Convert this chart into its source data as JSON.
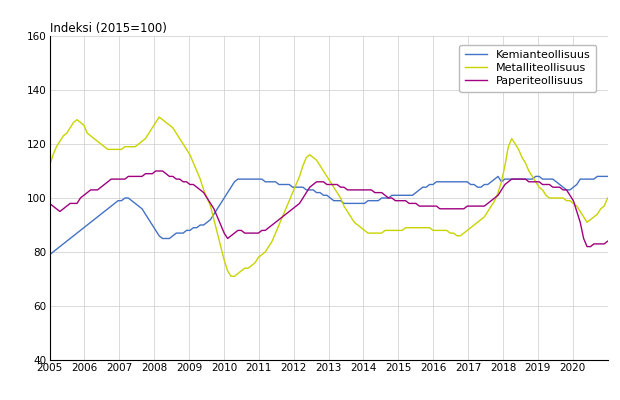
{
  "title": "Indeksi (2015=100)",
  "ylim": [
    40,
    160
  ],
  "yticks": [
    40,
    60,
    80,
    100,
    120,
    140,
    160
  ],
  "xlim": [
    2005.0,
    2021.0
  ],
  "xticks": [
    2005,
    2006,
    2007,
    2008,
    2009,
    2010,
    2011,
    2012,
    2013,
    2014,
    2015,
    2016,
    2017,
    2018,
    2019,
    2020
  ],
  "colors": {
    "Kemianteollisuus": "#4472c4",
    "Metalliteollisuus": "#c8d400",
    "Paperiteollisuus": "#a0007f"
  },
  "Kemianteollisuus": [
    79,
    80,
    81,
    82,
    83,
    84,
    85,
    86,
    87,
    88,
    89,
    90,
    91,
    92,
    93,
    94,
    95,
    96,
    97,
    98,
    99,
    99,
    100,
    100,
    99,
    98,
    97,
    96,
    94,
    92,
    90,
    88,
    86,
    85,
    85,
    85,
    86,
    87,
    87,
    87,
    88,
    88,
    89,
    89,
    90,
    90,
    91,
    92,
    94,
    96,
    98,
    100,
    102,
    104,
    106,
    107,
    107,
    107,
    107,
    107,
    107,
    107,
    107,
    106,
    106,
    106,
    106,
    105,
    105,
    105,
    105,
    104,
    104,
    104,
    104,
    103,
    103,
    103,
    102,
    102,
    101,
    101,
    100,
    99,
    99,
    99,
    98,
    98,
    98,
    98,
    98,
    98,
    98,
    99,
    99,
    99,
    99,
    100,
    100,
    100,
    101,
    101,
    101,
    101,
    101,
    101,
    101,
    102,
    103,
    104,
    104,
    105,
    105,
    106,
    106,
    106,
    106,
    106,
    106,
    106,
    106,
    106,
    106,
    105,
    105,
    104,
    104,
    105,
    105,
    106,
    107,
    108,
    106,
    107,
    107,
    107,
    107,
    107,
    107,
    107,
    107,
    107,
    108,
    108,
    107,
    107,
    107,
    107,
    106,
    105,
    104,
    103,
    103,
    104,
    105,
    107,
    107,
    107,
    107,
    107,
    108,
    108,
    108,
    108
  ],
  "Metalliteollisuus": [
    112,
    116,
    119,
    121,
    123,
    124,
    126,
    128,
    129,
    128,
    127,
    124,
    123,
    122,
    121,
    120,
    119,
    118,
    118,
    118,
    118,
    118,
    119,
    119,
    119,
    119,
    120,
    121,
    122,
    124,
    126,
    128,
    130,
    129,
    128,
    127,
    126,
    124,
    122,
    120,
    118,
    116,
    113,
    110,
    107,
    103,
    100,
    97,
    92,
    87,
    82,
    77,
    73,
    71,
    71,
    72,
    73,
    74,
    74,
    75,
    76,
    78,
    79,
    80,
    82,
    84,
    87,
    90,
    93,
    96,
    99,
    102,
    105,
    108,
    112,
    115,
    116,
    115,
    114,
    112,
    110,
    108,
    106,
    104,
    102,
    100,
    97,
    95,
    93,
    91,
    90,
    89,
    88,
    87,
    87,
    87,
    87,
    87,
    88,
    88,
    88,
    88,
    88,
    88,
    89,
    89,
    89,
    89,
    89,
    89,
    89,
    89,
    88,
    88,
    88,
    88,
    88,
    87,
    87,
    86,
    86,
    87,
    88,
    89,
    90,
    91,
    92,
    93,
    95,
    97,
    99,
    102,
    106,
    112,
    119,
    122,
    120,
    118,
    115,
    113,
    110,
    108,
    106,
    104,
    103,
    101,
    100,
    100,
    100,
    100,
    100,
    99,
    99,
    98,
    97,
    95,
    93,
    91,
    92,
    93,
    94,
    96,
    97,
    100
  ],
  "Paperiteollisuus": [
    98,
    97,
    96,
    95,
    96,
    97,
    98,
    98,
    98,
    100,
    101,
    102,
    103,
    103,
    103,
    104,
    105,
    106,
    107,
    107,
    107,
    107,
    107,
    108,
    108,
    108,
    108,
    108,
    109,
    109,
    109,
    110,
    110,
    110,
    109,
    108,
    108,
    107,
    107,
    106,
    106,
    105,
    105,
    104,
    103,
    102,
    100,
    98,
    96,
    93,
    90,
    87,
    85,
    86,
    87,
    88,
    88,
    87,
    87,
    87,
    87,
    87,
    88,
    88,
    89,
    90,
    91,
    92,
    93,
    94,
    95,
    96,
    97,
    98,
    100,
    102,
    104,
    105,
    106,
    106,
    106,
    105,
    105,
    105,
    105,
    104,
    104,
    103,
    103,
    103,
    103,
    103,
    103,
    103,
    103,
    102,
    102,
    102,
    101,
    100,
    100,
    99,
    99,
    99,
    99,
    98,
    98,
    98,
    97,
    97,
    97,
    97,
    97,
    97,
    96,
    96,
    96,
    96,
    96,
    96,
    96,
    96,
    97,
    97,
    97,
    97,
    97,
    97,
    98,
    99,
    100,
    101,
    103,
    105,
    106,
    107,
    107,
    107,
    107,
    107,
    106,
    106,
    106,
    106,
    105,
    105,
    105,
    104,
    104,
    104,
    103,
    103,
    101,
    99,
    95,
    91,
    85,
    82,
    82,
    83,
    83,
    83,
    83,
    84
  ]
}
